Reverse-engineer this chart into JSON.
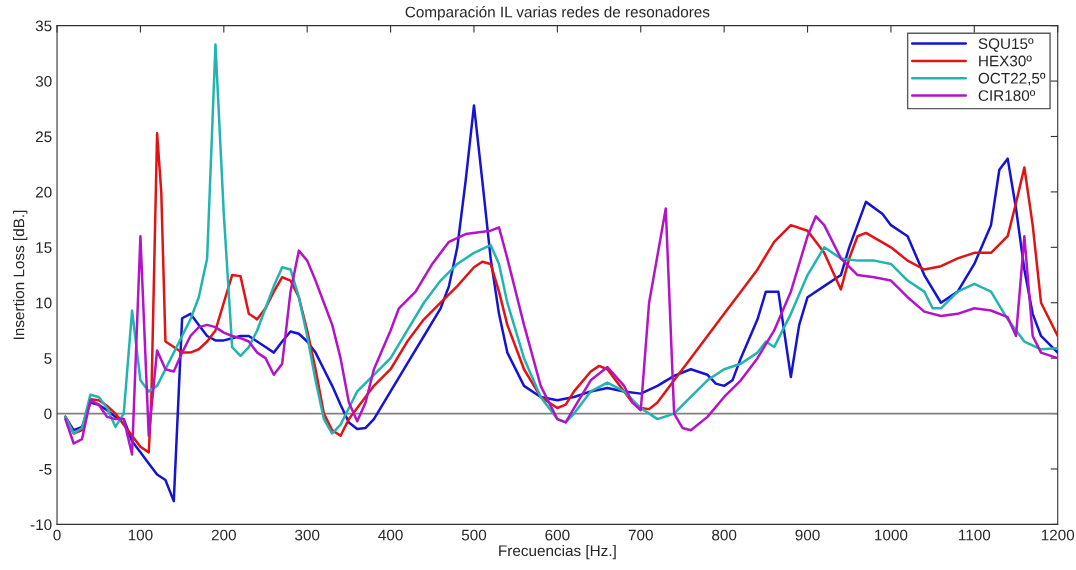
{
  "chart_data": {
    "type": "line",
    "title": "Comparación IL varias redes de resonadores",
    "xlabel": "Frecuencias [Hz.]",
    "ylabel": "Insertion Loss [dB.]",
    "xlim": [
      0,
      1200
    ],
    "xticks": [
      0,
      100,
      200,
      300,
      400,
      500,
      600,
      700,
      800,
      900,
      1000,
      1100,
      1200
    ],
    "ylim": [
      -10,
      35
    ],
    "yticks": [
      -10,
      -5,
      0,
      5,
      10,
      15,
      20,
      25,
      30,
      35
    ],
    "grid": false,
    "legend": "top right",
    "marker": "none",
    "line_style": "solid",
    "ref_lines": [
      {
        "axis": "y",
        "value": 0,
        "color": "#808080"
      }
    ],
    "series": [
      {
        "name": "SQU15º",
        "color": "#1414d2",
        "x": [
          10,
          20,
          30,
          40,
          50,
          60,
          70,
          80,
          90,
          100,
          110,
          120,
          130,
          140,
          150,
          160,
          170,
          180,
          190,
          200,
          210,
          220,
          230,
          240,
          250,
          260,
          270,
          280,
          290,
          300,
          310,
          320,
          330,
          340,
          350,
          360,
          370,
          380,
          400,
          420,
          440,
          460,
          470,
          480,
          490,
          500,
          510,
          520,
          530,
          540,
          560,
          580,
          600,
          620,
          640,
          660,
          680,
          700,
          720,
          740,
          760,
          780,
          790,
          800,
          810,
          820,
          840,
          850,
          865,
          880,
          890,
          900,
          920,
          940,
          950,
          970,
          990,
          1000,
          1020,
          1040,
          1060,
          1080,
          1100,
          1120,
          1130,
          1140,
          1150,
          1160,
          1170,
          1180,
          1200
        ],
        "values": [
          -0.3,
          -1.5,
          -1.2,
          1.0,
          0.8,
          0.3,
          -0.3,
          -0.5,
          -2.5,
          -3.5,
          -4.5,
          -5.5,
          -6,
          -7.9,
          8.6,
          9.0,
          8,
          7,
          6.6,
          6.6,
          6.8,
          7.0,
          7.0,
          6.5,
          6,
          5.5,
          6.5,
          7.4,
          7.2,
          6.5,
          5.5,
          4,
          2.5,
          0.8,
          -0.8,
          -1.4,
          -1.3,
          -0.5,
          2,
          4.5,
          7,
          9.5,
          11.5,
          15,
          21,
          27.8,
          21,
          14,
          9,
          5.5,
          2.5,
          1.5,
          1.2,
          1.5,
          2,
          2.3,
          2,
          1.8,
          2.5,
          3.4,
          4,
          3.5,
          2.7,
          2.5,
          3,
          5,
          8.5,
          11,
          11,
          3.3,
          8,
          10.5,
          11.5,
          12.5,
          15,
          19.1,
          18,
          17,
          16,
          12.5,
          10,
          11,
          13.5,
          17,
          22,
          23,
          18.5,
          13,
          9,
          7,
          5.5
        ]
      },
      {
        "name": "HEX30º",
        "color": "#e01414",
        "x": [
          10,
          20,
          30,
          40,
          50,
          60,
          70,
          80,
          90,
          100,
          110,
          113,
          120,
          125,
          130,
          140,
          150,
          160,
          170,
          180,
          190,
          200,
          210,
          220,
          230,
          240,
          250,
          260,
          270,
          280,
          290,
          300,
          310,
          320,
          330,
          340,
          350,
          360,
          380,
          400,
          420,
          440,
          460,
          480,
          500,
          510,
          520,
          530,
          540,
          560,
          580,
          600,
          610,
          620,
          640,
          650,
          660,
          680,
          690,
          700,
          710,
          720,
          740,
          760,
          780,
          800,
          820,
          840,
          860,
          880,
          900,
          920,
          940,
          950,
          960,
          970,
          1000,
          1020,
          1040,
          1060,
          1080,
          1100,
          1120,
          1140,
          1150,
          1160,
          1170,
          1180,
          1200
        ],
        "values": [
          -0.3,
          -1.8,
          -1.5,
          1.3,
          1.2,
          0.7,
          0,
          -1.0,
          -2,
          -3,
          -3.5,
          1.0,
          25.3,
          20,
          6.5,
          6,
          5.5,
          5.5,
          5.8,
          6.5,
          7.5,
          10,
          12.5,
          12.4,
          9,
          8.5,
          9.5,
          11,
          12.3,
          12,
          10.5,
          7.5,
          4,
          0,
          -1.5,
          -2,
          -0.5,
          0.5,
          2.5,
          4,
          6.5,
          8.5,
          10,
          11.5,
          13.2,
          13.7,
          13.5,
          11,
          8,
          4,
          1.5,
          0.5,
          0.8,
          2,
          3.8,
          4.3,
          4,
          2,
          1,
          0.5,
          0.4,
          1,
          3,
          5,
          7,
          9,
          11,
          13,
          15.5,
          17,
          16.5,
          14.5,
          11.2,
          14,
          16,
          16.3,
          15,
          13.8,
          13,
          13.3,
          14,
          14.5,
          14.5,
          16,
          19,
          22.2,
          17,
          10,
          7
        ]
      },
      {
        "name": "OCT22,5º",
        "color": "#22b4b0",
        "x": [
          10,
          20,
          30,
          40,
          50,
          60,
          70,
          80,
          90,
          100,
          110,
          120,
          130,
          140,
          150,
          160,
          170,
          180,
          190,
          200,
          210,
          220,
          230,
          240,
          250,
          260,
          270,
          280,
          290,
          300,
          310,
          320,
          330,
          340,
          350,
          360,
          380,
          400,
          420,
          440,
          460,
          480,
          500,
          520,
          530,
          540,
          560,
          580,
          600,
          610,
          620,
          640,
          660,
          680,
          700,
          720,
          740,
          760,
          780,
          800,
          820,
          840,
          850,
          860,
          880,
          900,
          920,
          940,
          960,
          980,
          1000,
          1020,
          1040,
          1050,
          1060,
          1080,
          1100,
          1120,
          1140,
          1160,
          1180,
          1200
        ],
        "values": [
          -0.3,
          -1.8,
          -1.3,
          1.7,
          1.5,
          0.5,
          -1.2,
          0,
          9.3,
          3,
          2,
          2.5,
          4,
          5.5,
          7,
          8.5,
          10.5,
          14,
          33.3,
          18,
          6,
          5.2,
          6,
          7.5,
          9.5,
          11.5,
          13.2,
          13,
          10.5,
          7,
          3,
          -0.5,
          -1.8,
          -1,
          0.5,
          2,
          3.5,
          5,
          7.5,
          10,
          12,
          13.5,
          14.5,
          15.2,
          13.5,
          10,
          5,
          1.5,
          -0.5,
          -0.8,
          0,
          2,
          2.8,
          2,
          0.5,
          -0.5,
          0,
          1.5,
          3,
          4,
          4.5,
          5.5,
          6.5,
          6,
          9,
          12.5,
          15,
          14,
          13.8,
          13.8,
          13.5,
          12,
          11,
          9.5,
          9.5,
          11,
          11.7,
          11,
          8.5,
          6.5,
          5.8,
          5.9
        ]
      },
      {
        "name": "CIR180º",
        "color": "#b414c8",
        "x": [
          10,
          20,
          30,
          40,
          50,
          60,
          70,
          80,
          90,
          100,
          110,
          120,
          130,
          140,
          150,
          160,
          170,
          180,
          190,
          200,
          210,
          220,
          230,
          240,
          250,
          260,
          270,
          280,
          290,
          300,
          310,
          320,
          330,
          340,
          350,
          360,
          370,
          380,
          400,
          410,
          430,
          450,
          470,
          490,
          520,
          530,
          540,
          560,
          580,
          600,
          610,
          620,
          640,
          660,
          680,
          690,
          700,
          710,
          730,
          740,
          750,
          760,
          780,
          800,
          820,
          840,
          860,
          880,
          900,
          910,
          920,
          940,
          960,
          980,
          1000,
          1020,
          1040,
          1060,
          1080,
          1100,
          1120,
          1140,
          1150,
          1160,
          1170,
          1180,
          1200
        ],
        "values": [
          -0.5,
          -2.7,
          -2.3,
          1.2,
          0.8,
          -0.3,
          -0.5,
          -0.5,
          -3.7,
          16,
          -2,
          5.7,
          4,
          3.8,
          5.5,
          7,
          7.8,
          8.0,
          7.8,
          7.3,
          7.0,
          6.8,
          6.5,
          5.5,
          5,
          3.5,
          4.5,
          11,
          14.7,
          13.8,
          12,
          10,
          8,
          5,
          1,
          -0.7,
          1,
          4,
          7.5,
          9.5,
          11,
          13.5,
          15.5,
          16.2,
          16.5,
          16.8,
          14,
          8,
          2.5,
          -0.5,
          -0.8,
          0.5,
          3,
          4.2,
          2.5,
          1,
          0.3,
          10,
          18.5,
          0,
          -1.3,
          -1.5,
          -0.3,
          1.5,
          3,
          5,
          7.5,
          11,
          16,
          17.8,
          17,
          14,
          12.5,
          12.3,
          12,
          10.5,
          9.2,
          8.8,
          9.0,
          9.5,
          9.3,
          8.7,
          7,
          16,
          7,
          5.5,
          5
        ]
      }
    ]
  }
}
